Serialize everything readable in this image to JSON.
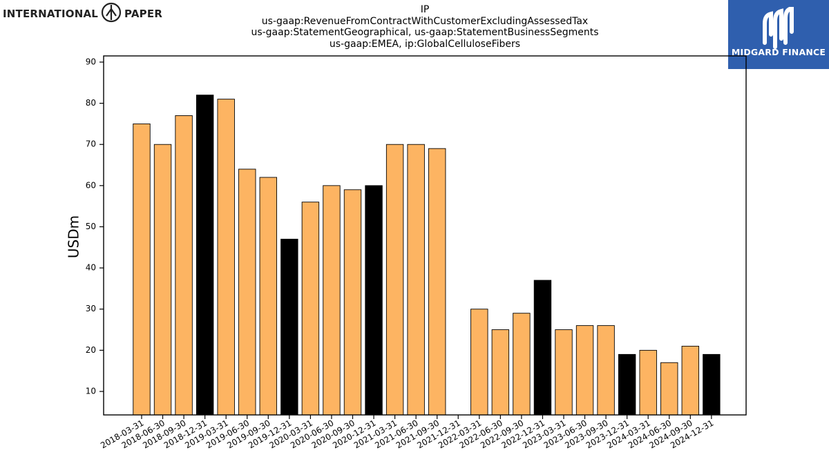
{
  "header": {
    "title_lines": [
      "IP",
      "us-gaap:RevenueFromContractWithCustomerExcludingAssessedTax",
      "us-gaap:StatementGeographical, us-gaap:StatementBusinessSegments",
      "us-gaap:EMEA, ip:GlobalCelluloseFibers"
    ]
  },
  "logos": {
    "company_left": "INTERNATIONAL",
    "company_right": "PAPER",
    "brand": "MIDGARD FINANCE"
  },
  "colors": {
    "bar_regular": "#fdb462",
    "bar_year_end": "#000000",
    "brand_bg": "#2f5fae"
  },
  "chart_data": {
    "type": "bar",
    "title": "IP",
    "xlabel": "",
    "ylabel": "USDm",
    "ylim": [
      4.3,
      91.5
    ],
    "yticks": [
      10,
      20,
      30,
      40,
      50,
      60,
      70,
      80,
      90
    ],
    "grid": false,
    "categories": [
      "2018-03-31",
      "2018-06-30",
      "2018-09-30",
      "2018-12-31",
      "2019-03-31",
      "2019-06-30",
      "2019-09-30",
      "2019-12-31",
      "2020-03-31",
      "2020-06-30",
      "2020-09-30",
      "2020-12-31",
      "2021-03-31",
      "2021-06-30",
      "2021-09-30",
      "2021-12-31",
      "2022-03-31",
      "2022-06-30",
      "2022-09-30",
      "2022-12-31",
      "2023-03-31",
      "2023-06-30",
      "2023-09-30",
      "2023-12-31",
      "2024-03-31",
      "2024-06-30",
      "2024-09-30",
      "2024-12-31"
    ],
    "values": [
      75,
      70,
      77,
      82,
      81,
      64,
      62,
      47,
      56,
      60,
      59,
      60,
      70,
      70,
      69,
      null,
      30,
      25,
      29,
      37,
      25,
      26,
      26,
      19,
      20,
      17,
      21,
      19
    ],
    "highlight": [
      false,
      false,
      false,
      true,
      false,
      false,
      false,
      true,
      false,
      false,
      false,
      true,
      false,
      false,
      false,
      true,
      false,
      false,
      false,
      true,
      false,
      false,
      false,
      true,
      false,
      false,
      false,
      true
    ]
  }
}
